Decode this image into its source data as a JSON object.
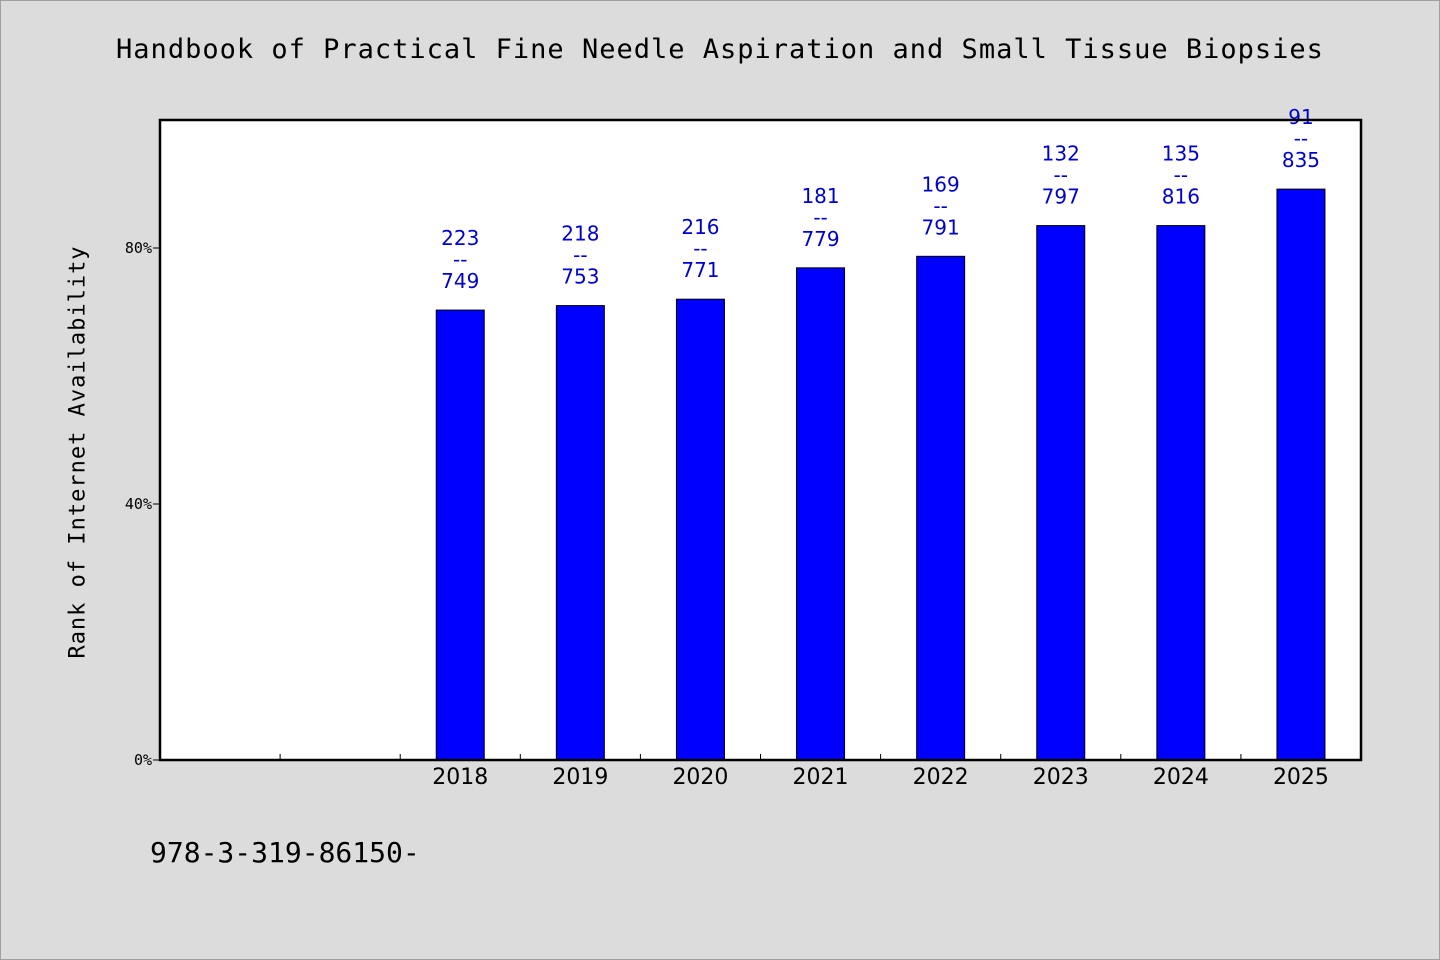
{
  "chart_data": {
    "type": "bar",
    "title": "Handbook of Practical Fine Needle Aspiration and Small Tissue Biopsies",
    "xlabel": "",
    "ylabel": "Rank of Internet Availability",
    "categories": [
      "2018",
      "2019",
      "2020",
      "2021",
      "2022",
      "2023",
      "2024",
      "2025"
    ],
    "values": [
      70.3,
      71.0,
      72.0,
      76.9,
      78.7,
      83.5,
      83.5,
      89.2
    ],
    "data_labels": [
      [
        "223",
        "--",
        "749"
      ],
      [
        "218",
        "--",
        "753"
      ],
      [
        "216",
        "--",
        "771"
      ],
      [
        "181",
        "--",
        "779"
      ],
      [
        "169",
        "--",
        "791"
      ],
      [
        "132",
        "--",
        "797"
      ],
      [
        "135",
        "--",
        "816"
      ],
      [
        "91",
        "--",
        "835"
      ]
    ],
    "category_slots": 10,
    "first_category_slot": 2,
    "ylim": [
      0,
      100
    ],
    "yticks": [
      0,
      40,
      80
    ],
    "ytick_labels": [
      "0%",
      "40%",
      "80%"
    ],
    "grid": false,
    "legend": "none",
    "bar_color": "#0000ff",
    "label_color": "#0000cc",
    "background_color": "#dcdcdc",
    "plot_background": "#ffffff"
  },
  "footer": {
    "isbn": "978-3-319-86150-"
  }
}
